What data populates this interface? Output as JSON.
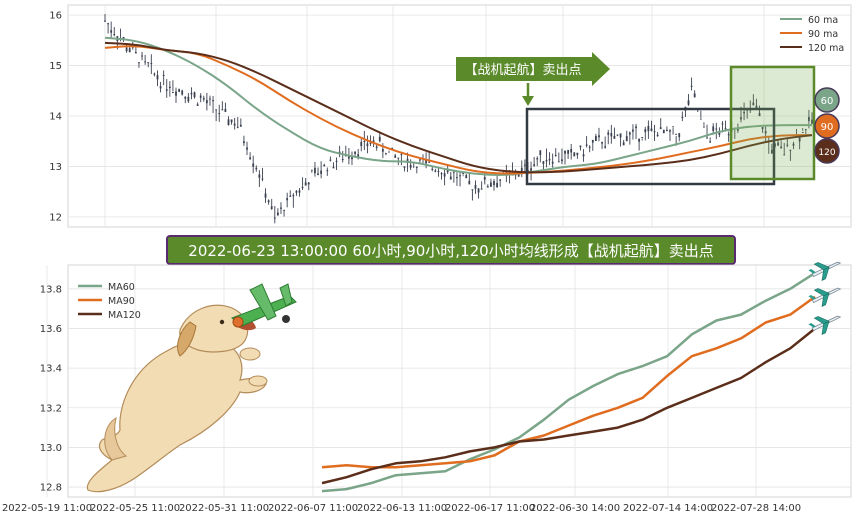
{
  "colors": {
    "ma60": "#7aa589",
    "ma90": "#e06c1f",
    "ma120": "#5a2e1a",
    "candle": "#3a4050",
    "signal_green": "#5a8a2a",
    "box_dark": "#333a44",
    "banner_bg": "#5a8a2a",
    "banner_border": "#5a2a70"
  },
  "top_chart": {
    "legend": [
      "60 ma",
      "90 ma",
      "120 ma"
    ],
    "y_ticks": [
      "16",
      "15",
      "14",
      "13",
      "12"
    ],
    "ylim": [
      11.8,
      16.2
    ],
    "signal_label": "【战机起航】卖出点",
    "badges": [
      "60",
      "90",
      "120"
    ]
  },
  "banner": {
    "text": "2022-06-23 13:00:00 60小时,90小时,120小时均线形成【战机起航】卖出点"
  },
  "bottom_chart": {
    "legend": [
      "MA60",
      "MA90",
      "MA120"
    ],
    "y_ticks": [
      "13.8",
      "13.6",
      "13.4",
      "13.2",
      "13.0",
      "12.8"
    ],
    "ylim": [
      12.75,
      13.92
    ]
  },
  "x_ticks": [
    "2022-05-19 11:00",
    "2022-05-25 11:00",
    "2022-05-31 11:00",
    "2022-06-07 11:00",
    "2022-06-13 11:00",
    "2022-06-17 11:00",
    "2022-06-30 14:00",
    "2022-07-14 14:00",
    "2022-07-28 14:00"
  ],
  "icons": [
    "dog-icon",
    "airplane-toy-icon",
    "airplane-icon"
  ],
  "chart_data": [
    {
      "type": "line",
      "title": "",
      "ylim": [
        11.8,
        16.2
      ],
      "grid": true,
      "legend_position": "top-right",
      "series": [
        {
          "name": "60 ma",
          "values": [
            15.55,
            15.5,
            15.3,
            15.0,
            14.6,
            14.1,
            13.7,
            13.35,
            13.2,
            13.1,
            13.1,
            12.95,
            12.85,
            12.82,
            12.9,
            13.0,
            13.05,
            13.2,
            13.35,
            13.5,
            13.7,
            13.8,
            13.82,
            13.82
          ]
        },
        {
          "name": "90 ma",
          "values": [
            15.35,
            15.4,
            15.3,
            15.25,
            15.0,
            14.7,
            14.3,
            13.95,
            13.65,
            13.4,
            13.2,
            13.05,
            12.9,
            12.85,
            12.88,
            12.92,
            12.98,
            13.05,
            13.15,
            13.28,
            13.4,
            13.55,
            13.62,
            13.62
          ]
        },
        {
          "name": "120 ma",
          "values": [
            15.45,
            15.42,
            15.3,
            15.25,
            15.1,
            14.85,
            14.55,
            14.25,
            13.95,
            13.65,
            13.4,
            13.2,
            13.0,
            12.9,
            12.88,
            12.9,
            12.95,
            13.0,
            13.05,
            13.12,
            13.25,
            13.42,
            13.55,
            13.62
          ]
        }
      ]
    },
    {
      "type": "line",
      "title": "",
      "ylim": [
        12.75,
        13.92
      ],
      "grid": true,
      "legend_position": "top-left",
      "x": [
        0,
        1,
        2,
        3,
        4,
        5,
        6,
        7,
        8,
        9,
        10,
        11,
        12,
        13,
        14,
        15,
        16,
        17,
        18,
        19,
        20
      ],
      "series": [
        {
          "name": "MA60",
          "values": [
            12.78,
            12.79,
            12.82,
            12.86,
            12.87,
            12.88,
            12.94,
            12.99,
            13.05,
            13.14,
            13.24,
            13.31,
            13.37,
            13.41,
            13.46,
            13.57,
            13.64,
            13.67,
            13.74,
            13.8,
            13.88
          ]
        },
        {
          "name": "MA90",
          "values": [
            12.9,
            12.91,
            12.9,
            12.9,
            12.91,
            12.92,
            12.93,
            12.96,
            13.03,
            13.06,
            13.11,
            13.16,
            13.2,
            13.25,
            13.36,
            13.46,
            13.5,
            13.55,
            13.63,
            13.67,
            13.76
          ]
        },
        {
          "name": "MA120",
          "values": [
            12.82,
            12.85,
            12.89,
            12.92,
            12.93,
            12.95,
            12.98,
            13.0,
            13.03,
            13.04,
            13.06,
            13.08,
            13.1,
            13.14,
            13.2,
            13.25,
            13.3,
            13.35,
            13.43,
            13.5,
            13.6
          ]
        }
      ]
    }
  ]
}
